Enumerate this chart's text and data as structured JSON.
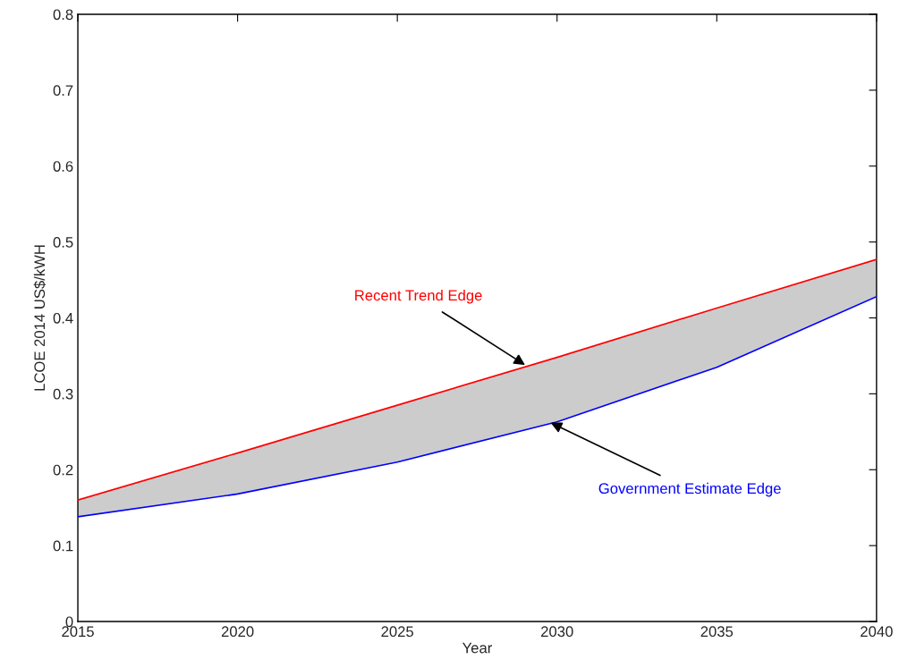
{
  "chart_data": {
    "type": "line",
    "xlabel": "Year",
    "ylabel": "LCOE 2014 US$/kWH",
    "x": [
      2015,
      2020,
      2025,
      2030,
      2035,
      2040
    ],
    "series": [
      {
        "color": "#ff0000",
        "values": [
          0.16,
          0.222,
          0.285,
          0.348,
          0.413,
          0.477
        ],
        "lower": [
          0.138,
          0.168,
          0.21,
          0.263,
          0.335,
          0.428
        ],
        "upper": [
          0.16,
          0.222,
          0.285,
          0.348,
          0.413,
          0.477
        ]
      },
      {
        "color": "#0000ff",
        "values": [
          0.138,
          0.168,
          0.21,
          0.263,
          0.335,
          0.428
        ]
      }
    ],
    "annotations": [
      {
        "text": "Recent Trend Edge",
        "x": 2029,
        "y": 0.338
      },
      {
        "text": "Government Estimate Edge",
        "x": 2029.8,
        "y": 0.262
      }
    ],
    "xlim": [
      2015,
      2040
    ],
    "xticks": [
      2015,
      2020,
      2025,
      2030,
      2035,
      2040
    ],
    "ylim": [
      0,
      0.8
    ],
    "yticks": [
      0,
      0.1,
      0.2,
      0.3,
      0.4,
      0.5,
      0.6,
      0.7,
      0.8
    ],
    "grid": false,
    "legend": false
  }
}
